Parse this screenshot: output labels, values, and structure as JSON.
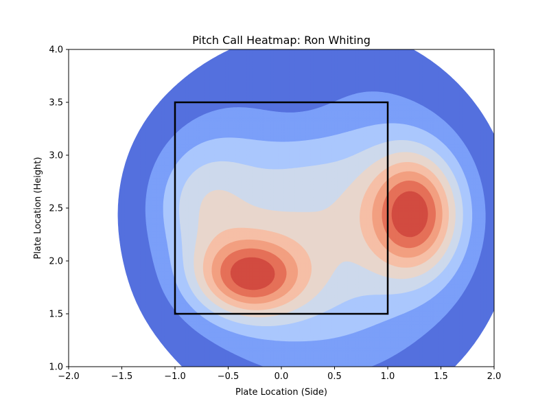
{
  "chart_data": {
    "type": "heatmap",
    "title": "Pitch Call Heatmap: Ron Whiting",
    "xlabel": "Plate Location (Side)",
    "ylabel": "Plate Location (Height)",
    "xlim": [
      -2.0,
      2.0
    ],
    "ylim": [
      1.0,
      4.0
    ],
    "x_ticks": [
      -2.0,
      -1.5,
      -1.0,
      -0.5,
      0.0,
      0.5,
      1.0,
      1.5,
      2.0
    ],
    "x_tick_labels": [
      "−2.0",
      "−1.5",
      "−1.0",
      "−0.5",
      "0.0",
      "0.5",
      "1.0",
      "1.5",
      "2.0"
    ],
    "y_ticks": [
      1.0,
      1.5,
      2.0,
      2.5,
      3.0,
      3.5,
      4.0
    ],
    "y_tick_labels": [
      "1.0",
      "1.5",
      "2.0",
      "2.5",
      "3.0",
      "3.5",
      "4.0"
    ],
    "grid": false,
    "colormap": "coolwarm",
    "contour_levels": 9,
    "level_colors": [
      "#ffffff",
      "#5470de",
      "#7b9ff9",
      "#aac7fd",
      "#cdd9ec",
      "#e8d6cc",
      "#f6bfa6",
      "#f29f80",
      "#e57058",
      "#d24b40"
    ],
    "density_peaks": [
      {
        "x": -0.3,
        "y": 1.85,
        "level": "max"
      },
      {
        "x": 1.25,
        "y": 2.45,
        "level": "max"
      }
    ],
    "strike_zone": {
      "x": [
        -1.0,
        1.0
      ],
      "y": [
        1.5,
        3.5
      ]
    }
  }
}
